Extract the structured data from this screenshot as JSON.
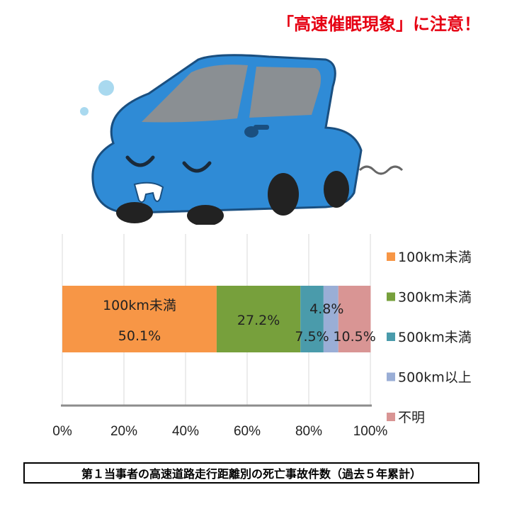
{
  "headline": "「高速催眠現象」に注意！",
  "caption": "第１当事者の高速道路走行距離別の死亡事故件数（過去５年累計）",
  "chart_data": {
    "type": "bar",
    "orientation": "horizontal-stacked-100",
    "categories": [
      ""
    ],
    "series": [
      {
        "name": "100km未満",
        "values": [
          50.1
        ],
        "color": "#f79646",
        "label": "50.1%",
        "label_title": "100km未満"
      },
      {
        "name": "300km未満",
        "values": [
          27.2
        ],
        "color": "#77a03c",
        "label": "27.2%"
      },
      {
        "name": "500km未満",
        "values": [
          7.5
        ],
        "color": "#4a9bab",
        "label": "7.5%"
      },
      {
        "name": "500km以上",
        "values": [
          4.8
        ],
        "color": "#9aaed6",
        "label": "4.8%"
      },
      {
        "name": "不明",
        "values": [
          10.5
        ],
        "color": "#d99594",
        "label": "10.5%"
      }
    ],
    "xlim": [
      0,
      100
    ],
    "xticks": [
      "0%",
      "20%",
      "40%",
      "60%",
      "80%",
      "100%"
    ],
    "grid": true,
    "legend_position": "right",
    "title": "",
    "xlabel": "",
    "ylabel": ""
  },
  "colors": {
    "headline": "#e60012",
    "car_body": "#2f8bd6",
    "car_outline": "#1a4f80"
  }
}
